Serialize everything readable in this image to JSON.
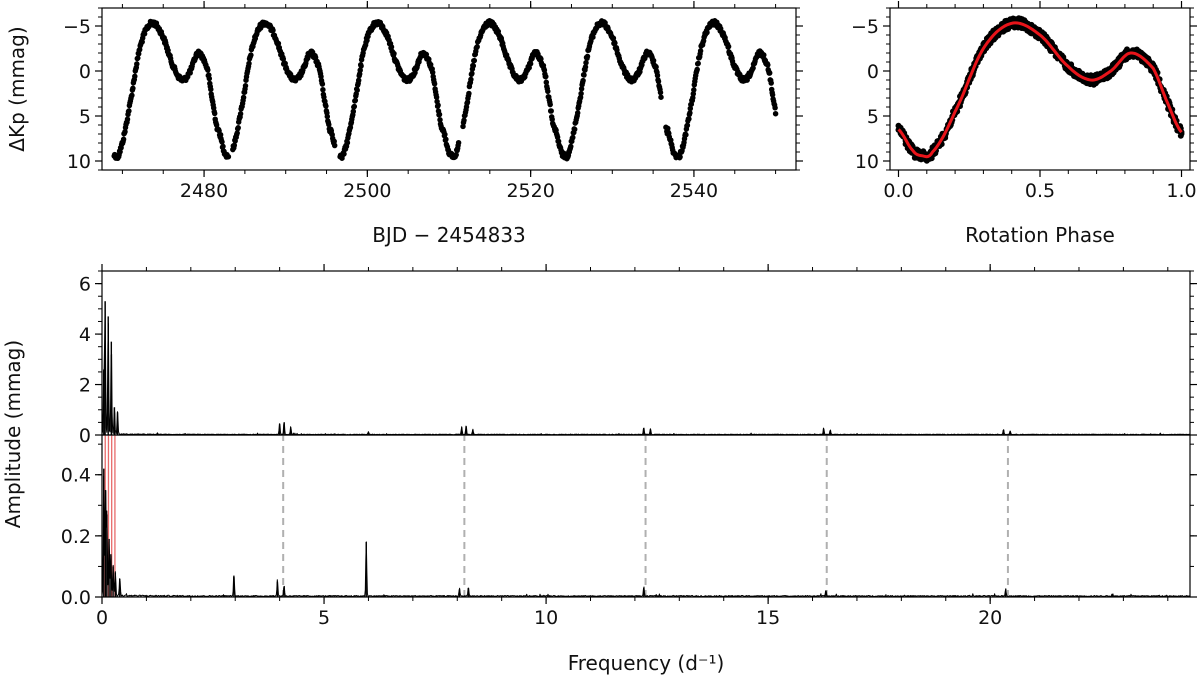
{
  "chart_data": [
    {
      "panel": "light-curve",
      "type": "scatter",
      "xlabel": "BJD − 2454833",
      "ylabel": "ΔKp (mmag)",
      "xlim": [
        2467.5,
        2552.5
      ],
      "ylim": [
        11,
        -7
      ],
      "y_inverted": true,
      "xticks": [
        2480,
        2500,
        2520,
        2540
      ],
      "yticks": [
        -5,
        0,
        5,
        10
      ],
      "marker_color": "#000000",
      "series": [
        {
          "x_range": [
            2469,
            2550
          ],
          "rotation_period": 13.75,
          "phase_zero": 2468.0,
          "gaps": [
            [
              2483.0,
              2483.5
            ],
            [
              2496.0,
              2496.6
            ],
            [
              2511.2,
              2511.7
            ],
            [
              2536.0,
              2536.5
            ]
          ]
        }
      ]
    },
    {
      "panel": "phase-folded",
      "type": "line",
      "xlabel": "Rotation Phase",
      "ylabel": "",
      "xlim": [
        -0.03,
        1.03
      ],
      "ylim": [
        11,
        -7
      ],
      "y_inverted": true,
      "xticks": [
        0.0,
        0.5,
        1.0
      ],
      "yticks": [
        -5,
        0,
        5,
        10
      ],
      "data_color": "#000000",
      "model_color": "#e8141a",
      "model_curve": {
        "phase": [
          0,
          0.05,
          0.08,
          0.12,
          0.2,
          0.3,
          0.4,
          0.5,
          0.6,
          0.68,
          0.75,
          0.82,
          0.9,
          0.95,
          1.0
        ],
        "value": [
          6.5,
          8.8,
          9.4,
          9.0,
          4.5,
          -2.5,
          -5.3,
          -4.0,
          -0.5,
          1.0,
          0.0,
          -2.0,
          -0.3,
          3.5,
          6.8
        ]
      }
    },
    {
      "panel": "amplitude-spectrum",
      "type": "line",
      "xlabel": "",
      "ylabel": "",
      "xlim": [
        0,
        24.5
      ],
      "ylim": [
        0,
        6.5
      ],
      "xticks": [
        0,
        5,
        10,
        15,
        20
      ],
      "yticks": [
        0,
        2,
        4,
        6
      ],
      "line_color": "#000000",
      "peaks": [
        {
          "x": 0.07,
          "y": 5.3
        },
        {
          "x": 0.14,
          "y": 4.7
        },
        {
          "x": 0.21,
          "y": 3.7
        },
        {
          "x": 0.04,
          "y": 2.6
        },
        {
          "x": 0.28,
          "y": 1.1
        },
        {
          "x": 0.35,
          "y": 0.9
        },
        {
          "x": 4.0,
          "y": 0.45
        },
        {
          "x": 4.1,
          "y": 0.5
        },
        {
          "x": 4.25,
          "y": 0.3
        },
        {
          "x": 8.1,
          "y": 0.3
        },
        {
          "x": 8.2,
          "y": 0.35
        },
        {
          "x": 8.35,
          "y": 0.2
        },
        {
          "x": 12.2,
          "y": 0.28
        },
        {
          "x": 12.35,
          "y": 0.22
        },
        {
          "x": 16.25,
          "y": 0.25
        },
        {
          "x": 16.4,
          "y": 0.18
        },
        {
          "x": 20.3,
          "y": 0.2
        },
        {
          "x": 20.45,
          "y": 0.15
        },
        {
          "x": 6.0,
          "y": 0.1
        }
      ]
    },
    {
      "panel": "residual-spectrum",
      "type": "line",
      "xlabel": "Frequency (d⁻¹)",
      "ylabel": "Amplitude (mmag)",
      "xlim": [
        0,
        24.5
      ],
      "ylim": [
        0,
        0.53
      ],
      "xticks": [
        0,
        5,
        10,
        15,
        20
      ],
      "yticks": [
        0.0,
        0.2,
        0.4
      ],
      "line_color": "#000000",
      "rotation_harmonic_color": "#e86a6a",
      "rotation_harmonics": [
        0.0727,
        0.1455,
        0.2182,
        0.2909
      ],
      "dashed_line_color": "#b0b0b0",
      "dashed_lines": [
        4.08,
        8.16,
        12.24,
        16.32,
        20.4
      ],
      "peaks": [
        {
          "x": 0.04,
          "y": 0.42
        },
        {
          "x": 0.08,
          "y": 0.35
        },
        {
          "x": 0.11,
          "y": 0.27
        },
        {
          "x": 0.16,
          "y": 0.19
        },
        {
          "x": 0.2,
          "y": 0.14
        },
        {
          "x": 0.25,
          "y": 0.1
        },
        {
          "x": 0.3,
          "y": 0.08
        },
        {
          "x": 0.4,
          "y": 0.06
        },
        {
          "x": 2.97,
          "y": 0.07
        },
        {
          "x": 3.95,
          "y": 0.05
        },
        {
          "x": 4.1,
          "y": 0.035
        },
        {
          "x": 5.95,
          "y": 0.18
        },
        {
          "x": 8.05,
          "y": 0.025
        },
        {
          "x": 8.25,
          "y": 0.03
        },
        {
          "x": 12.2,
          "y": 0.03
        },
        {
          "x": 16.3,
          "y": 0.02
        },
        {
          "x": 20.35,
          "y": 0.025
        }
      ]
    }
  ]
}
